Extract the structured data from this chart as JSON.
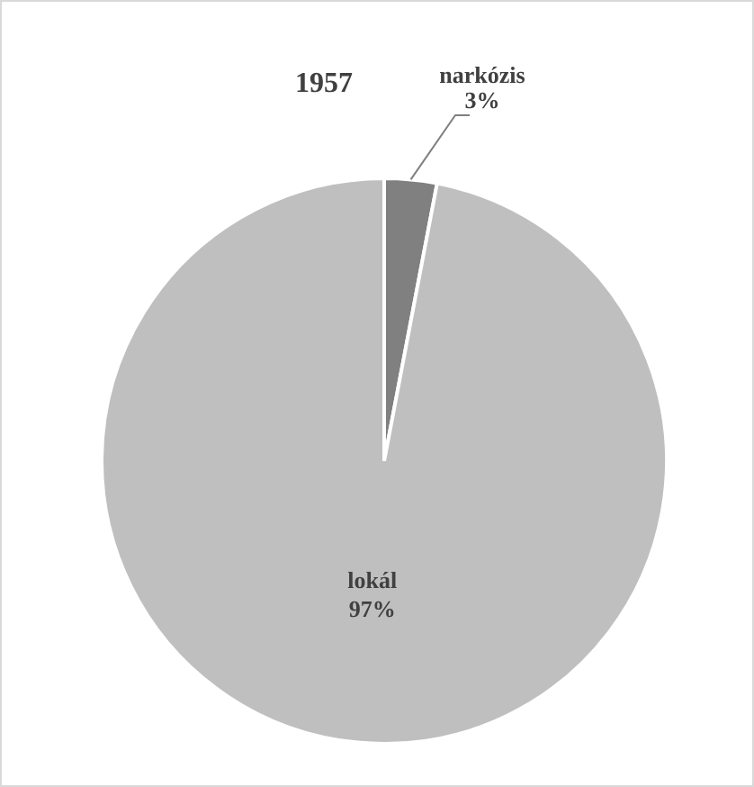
{
  "chart_data": {
    "type": "pie",
    "title": "1957",
    "categories": [
      "narkózis",
      "lokál"
    ],
    "values": [
      3,
      97
    ],
    "value_labels": [
      "3%",
      "97%"
    ],
    "colors": [
      "#808080",
      "#bfbfbf"
    ]
  }
}
